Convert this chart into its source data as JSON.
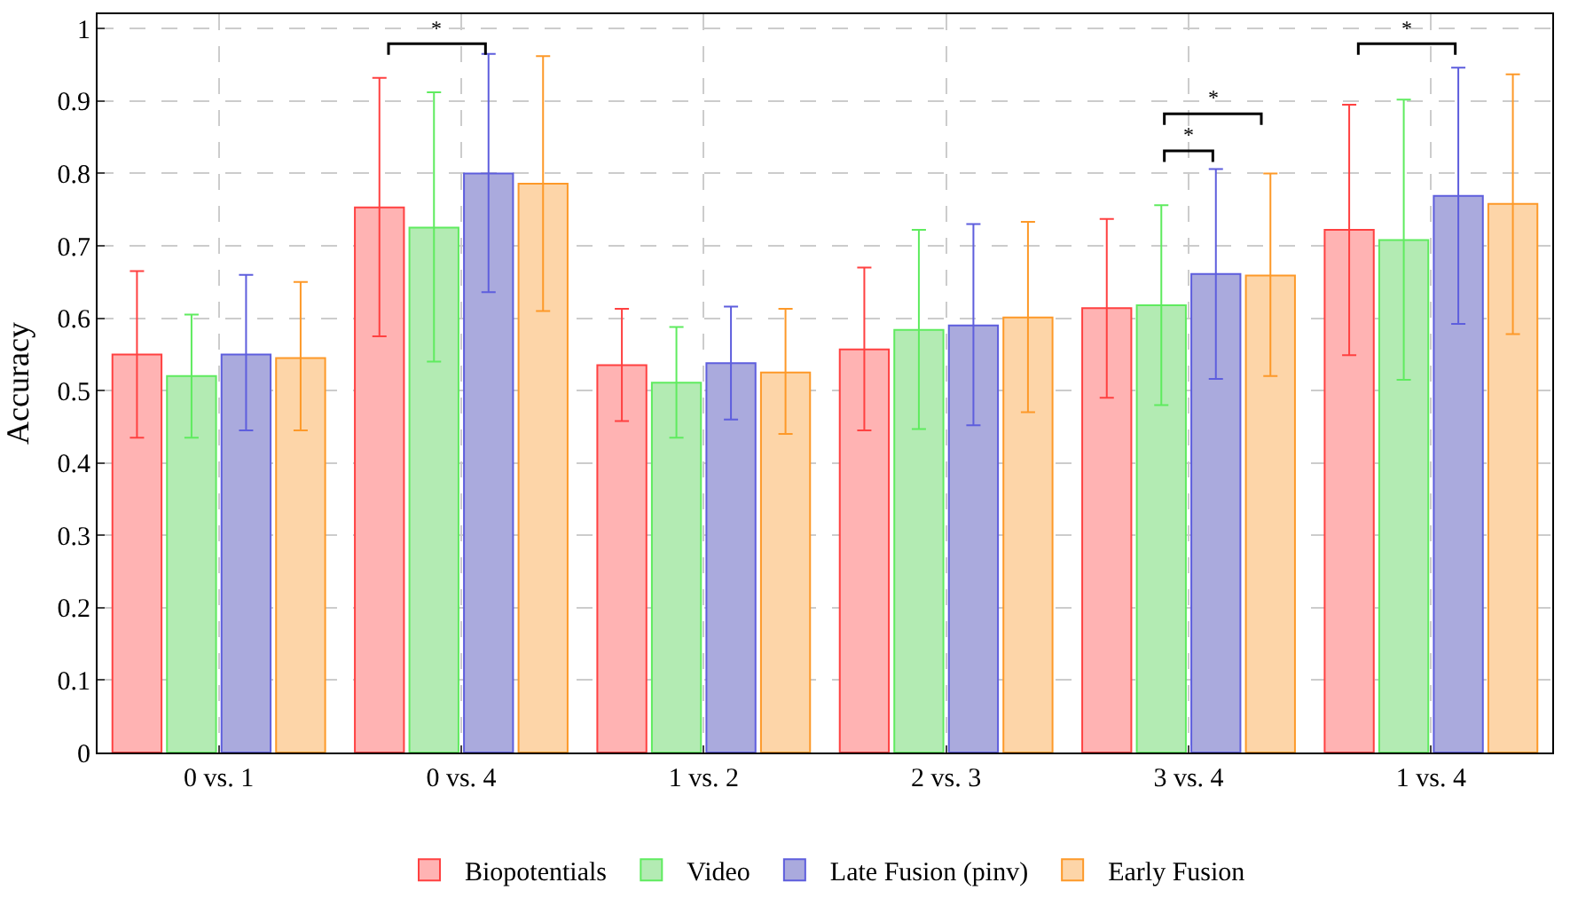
{
  "chart_data": {
    "type": "bar",
    "ylabel": "Accuracy",
    "categories": [
      "0 vs. 1",
      "0 vs. 4",
      "1 vs. 2",
      "2 vs. 3",
      "3 vs. 4",
      "1 vs. 4"
    ],
    "ylim": [
      0,
      1.02
    ],
    "yticks": [
      0,
      0.1,
      0.2,
      0.3,
      0.4,
      0.5,
      0.6,
      0.7,
      0.8,
      0.9,
      1
    ],
    "grid": true,
    "legend": "bottom",
    "series": [
      {
        "name": "Biopotentials",
        "color": "#ffb3b3",
        "values": [
          0.55,
          0.753,
          0.535,
          0.557,
          0.614,
          0.722
        ],
        "errors": [
          [
            0.435,
            0.665
          ],
          [
            0.575,
            0.932
          ],
          [
            0.458,
            0.613
          ],
          [
            0.445,
            0.67
          ],
          [
            0.49,
            0.737
          ],
          [
            0.549,
            0.895
          ]
        ]
      },
      {
        "name": "Video",
        "color": "#b3ebb3",
        "values": [
          0.52,
          0.725,
          0.511,
          0.584,
          0.618,
          0.708
        ],
        "errors": [
          [
            0.435,
            0.605
          ],
          [
            0.54,
            0.912
          ],
          [
            0.435,
            0.588
          ],
          [
            0.447,
            0.722
          ],
          [
            0.48,
            0.756
          ],
          [
            0.515,
            0.902
          ]
        ]
      },
      {
        "name": "Late Fusion (pinv)",
        "color": "#aaaadd",
        "values": [
          0.55,
          0.8,
          0.538,
          0.59,
          0.661,
          0.769
        ],
        "errors": [
          [
            0.445,
            0.66
          ],
          [
            0.636,
            0.965
          ],
          [
            0.46,
            0.616
          ],
          [
            0.452,
            0.73
          ],
          [
            0.516,
            0.806
          ],
          [
            0.592,
            0.946
          ]
        ]
      },
      {
        "name": "Early Fusion",
        "color": "#fdd5a8",
        "values": [
          0.545,
          0.786,
          0.525,
          0.601,
          0.659,
          0.758
        ],
        "errors": [
          [
            0.445,
            0.65
          ],
          [
            0.61,
            0.962
          ],
          [
            0.44,
            0.613
          ],
          [
            0.47,
            0.733
          ],
          [
            0.52,
            0.8
          ],
          [
            0.578,
            0.937
          ]
        ]
      }
    ],
    "annotations": [
      "*",
      "*",
      "*",
      "*"
    ]
  }
}
